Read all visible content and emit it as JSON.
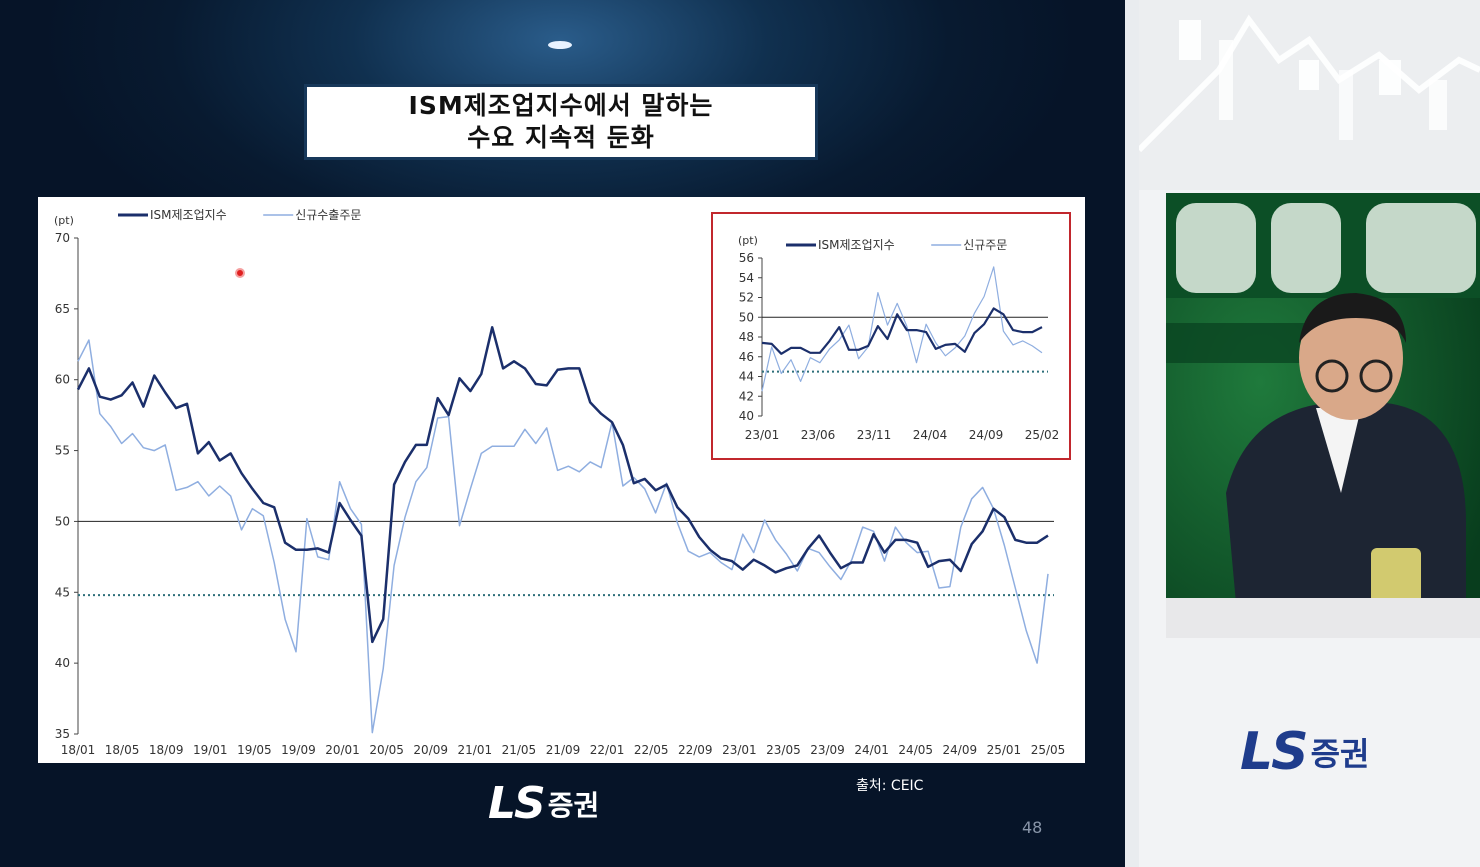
{
  "slide": {
    "title_line1": "ISM제조업지수에서 말하는",
    "title_line2": "수요 지속적 둔화",
    "source": "출처: CEIC",
    "page_number": "48",
    "logo_text": "LS",
    "logo_korean": "증권"
  },
  "chart_data": [
    {
      "type": "line",
      "unit_label": "(pt)",
      "ylim": [
        35,
        70
      ],
      "yticks": [
        35,
        40,
        45,
        50,
        55,
        60,
        65,
        70
      ],
      "xtick_labels": [
        "18/01",
        "18/05",
        "18/09",
        "19/01",
        "19/05",
        "19/09",
        "20/01",
        "20/05",
        "20/09",
        "21/01",
        "21/05",
        "21/09",
        "22/01",
        "22/05",
        "22/09",
        "23/01",
        "23/05",
        "23/09",
        "24/01",
        "24/05",
        "24/09",
        "25/01",
        "25/05"
      ],
      "reference_line": 50,
      "dotted_line": 44.8,
      "series": [
        {
          "name": "ISM제조업지수",
          "color": "#1b2f6b",
          "values": [
            59.3,
            60.8,
            58.8,
            58.6,
            58.9,
            59.8,
            58.1,
            60.3,
            59.1,
            58.0,
            58.3,
            54.8,
            55.6,
            54.3,
            54.8,
            53.4,
            52.3,
            51.3,
            51.0,
            48.5,
            48.0,
            48.0,
            48.1,
            47.8,
            51.3,
            50.1,
            49.0,
            41.5,
            43.1,
            52.6,
            54.2,
            55.4,
            55.4,
            58.7,
            57.5,
            60.1,
            59.2,
            60.4,
            63.7,
            60.8,
            61.3,
            60.8,
            59.7,
            59.6,
            60.7,
            60.8,
            60.8,
            58.4,
            57.6,
            57.0,
            55.4,
            52.7,
            53.0,
            52.2,
            52.6,
            51.0,
            50.2,
            48.9,
            48.0,
            47.4,
            47.2,
            46.6,
            47.3,
            46.9,
            46.4,
            46.7,
            46.9,
            48.1,
            49.0,
            47.8,
            46.7,
            47.1,
            47.1,
            49.1,
            47.8,
            48.7,
            48.7,
            48.5,
            46.8,
            47.2,
            47.3,
            46.5,
            48.4,
            49.3,
            50.9,
            50.3,
            48.7,
            48.5,
            48.5,
            49.0
          ]
        },
        {
          "name": "신규수출주문",
          "color": "#8faee0",
          "values": [
            61.3,
            62.8,
            57.6,
            56.7,
            55.5,
            56.2,
            55.2,
            55.0,
            55.4,
            52.2,
            52.4,
            52.8,
            51.8,
            52.5,
            51.8,
            49.4,
            50.9,
            50.4,
            47.1,
            43.1,
            40.8,
            50.2,
            47.5,
            47.3,
            52.8,
            50.9,
            49.8,
            35.1,
            39.6,
            46.9,
            50.3,
            52.8,
            53.8,
            57.3,
            57.4,
            49.7,
            52.3,
            54.8,
            55.3,
            55.3,
            55.3,
            56.5,
            55.5,
            56.6,
            53.6,
            53.9,
            53.5,
            54.2,
            53.8,
            57.0,
            52.5,
            53.1,
            52.3,
            50.6,
            52.7,
            49.9,
            47.9,
            47.5,
            47.8,
            47.1,
            46.6,
            49.1,
            47.8,
            50.1,
            48.7,
            47.7,
            46.5,
            48.1,
            47.8,
            46.8,
            45.9,
            47.3,
            49.6,
            49.3,
            47.2,
            49.6,
            48.5,
            47.8,
            47.9,
            45.3,
            45.4,
            49.6,
            51.6,
            52.4,
            50.9,
            48.3,
            45.3,
            42.3,
            40.0,
            46.3
          ]
        }
      ]
    },
    {
      "type": "line",
      "unit_label": "(pt)",
      "ylim": [
        40,
        56
      ],
      "yticks": [
        40,
        42,
        44,
        46,
        48,
        50,
        52,
        54,
        56
      ],
      "xtick_labels": [
        "23/01",
        "23/06",
        "23/11",
        "24/04",
        "24/09",
        "25/02"
      ],
      "reference_line": 50,
      "dotted_line": 44.5,
      "series": [
        {
          "name": "ISM제조업지수",
          "color": "#1b2f6b",
          "values": [
            47.4,
            47.3,
            46.3,
            46.9,
            46.9,
            46.4,
            46.4,
            47.6,
            49.0,
            46.7,
            46.7,
            47.1,
            49.1,
            47.8,
            50.3,
            48.7,
            48.7,
            48.5,
            46.8,
            47.2,
            47.3,
            46.5,
            48.4,
            49.3,
            50.9,
            50.3,
            48.7,
            48.5,
            48.5,
            49.0
          ]
        },
        {
          "name": "신규주문",
          "color": "#8faee0",
          "values": [
            42.5,
            47.0,
            44.3,
            45.7,
            43.5,
            45.9,
            45.4,
            46.8,
            47.7,
            49.2,
            45.8,
            47.0,
            52.5,
            49.2,
            51.4,
            49.1,
            45.4,
            49.3,
            47.4,
            46.1,
            46.9,
            48.1,
            50.4,
            52.1,
            55.1,
            48.6,
            47.2,
            47.6,
            47.1,
            46.4
          ]
        }
      ]
    }
  ]
}
